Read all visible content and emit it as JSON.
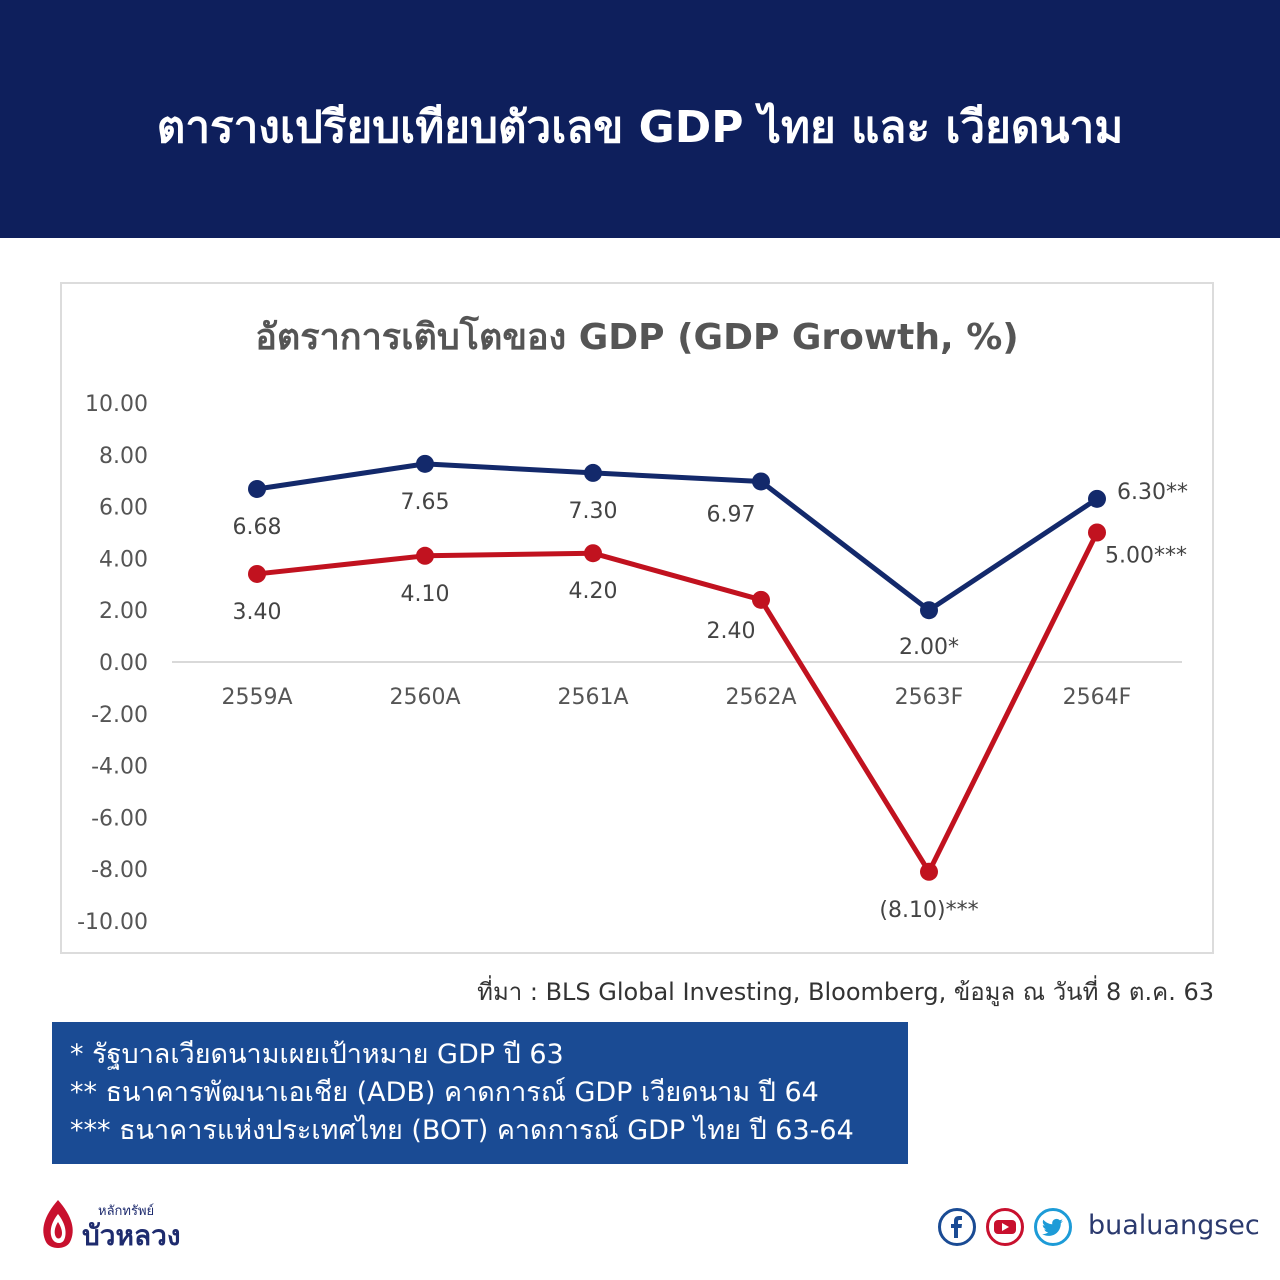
{
  "header": {
    "title": "ตารางเปรียบเทียบตัวเลข GDP ไทย และ เวียดนาม"
  },
  "chart_data": {
    "type": "line",
    "title": "อัตราการเติบโตของ GDP (GDP Growth, %)",
    "categories": [
      "2559A",
      "2560A",
      "2561A",
      "2562A",
      "2563F",
      "2564F"
    ],
    "y_ticks": [
      "10.00",
      "8.00",
      "6.00",
      "4.00",
      "2.00",
      "0.00",
      "-2.00",
      "-4.00",
      "-6.00",
      "-8.00",
      "-10.00"
    ],
    "ylim": [
      -10,
      10
    ],
    "grid": false,
    "series": [
      {
        "color": "#13296b",
        "values": [
          6.68,
          7.65,
          7.3,
          6.97,
          2.0,
          6.3
        ],
        "labels": [
          "6.68",
          "7.65",
          "7.30",
          "6.97",
          "2.00*",
          "6.30**"
        ]
      },
      {
        "color": "#c1121f",
        "values": [
          3.4,
          4.1,
          4.2,
          2.4,
          -8.1,
          5.0
        ],
        "labels": [
          "3.40",
          "4.10",
          "4.20",
          "2.40",
          "(8.10)***",
          "5.00***"
        ]
      }
    ]
  },
  "source": "ที่มา : BLS Global Investing, Bloomberg, ข้อมูล ณ วันที่ 8 ต.ค. 63",
  "notes": [
    "* รัฐบาลเวียดนามเผยเป้าหมาย GDP ปี 63",
    "** ธนาคารพัฒนาเอเชีย (ADB) คาดการณ์ GDP เวียดนาม ปี 64",
    "*** ธนาคารแห่งประเทศไทย (BOT) คาดการณ์ GDP ไทย ปี 63-64"
  ],
  "brand": {
    "logo_small": "หลักทรัพย์",
    "logo_big": "บัวหลวง",
    "handle": "bualuangsec"
  },
  "social_icons": [
    "facebook-icon",
    "youtube-icon",
    "twitter-icon"
  ],
  "colors": {
    "header": "#0e1f5c",
    "notes_box": "#1a4b94",
    "vietnam": "#13296b",
    "thailand": "#c1121f"
  }
}
